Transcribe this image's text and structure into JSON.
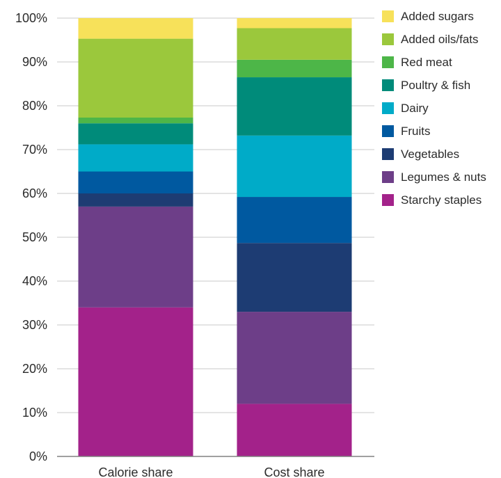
{
  "chart_data": {
    "type": "bar",
    "stacked": true,
    "categories": [
      "Calorie share",
      "Cost share"
    ],
    "y_tick_labels": [
      "0%",
      "10%",
      "20%",
      "30%",
      "40%",
      "50%",
      "60%",
      "70%",
      "80%",
      "90%",
      "100%"
    ],
    "ylim": [
      0,
      100
    ],
    "grid": true,
    "legend_position": "right",
    "series": [
      {
        "name": "Starchy staples",
        "color": "#a3228a",
        "values": [
          34,
          12
        ]
      },
      {
        "name": "Legumes & nuts",
        "color": "#6d3e88",
        "values": [
          23,
          21
        ]
      },
      {
        "name": "Vegetables",
        "color": "#1d3c73",
        "values": [
          3,
          15.7
        ]
      },
      {
        "name": "Fruits",
        "color": "#0059a0",
        "values": [
          5,
          10.5
        ]
      },
      {
        "name": "Dairy",
        "color": "#00abc8",
        "values": [
          6.2,
          14
        ]
      },
      {
        "name": "Poultry & fish",
        "color": "#008b7a",
        "values": [
          4.8,
          13.3
        ]
      },
      {
        "name": "Red meat",
        "color": "#4db648",
        "values": [
          1.3,
          4
        ]
      },
      {
        "name": "Added oils/fats",
        "color": "#9bc83c",
        "values": [
          18,
          7.2
        ]
      },
      {
        "name": "Added sugars",
        "color": "#f7e15a",
        "values": [
          4.7,
          2.3
        ]
      }
    ],
    "legend_order": [
      "Added sugars",
      "Added oils/fats",
      "Red meat",
      "Poultry & fish",
      "Dairy",
      "Fruits",
      "Vegetables",
      "Legumes & nuts",
      "Starchy staples"
    ]
  }
}
